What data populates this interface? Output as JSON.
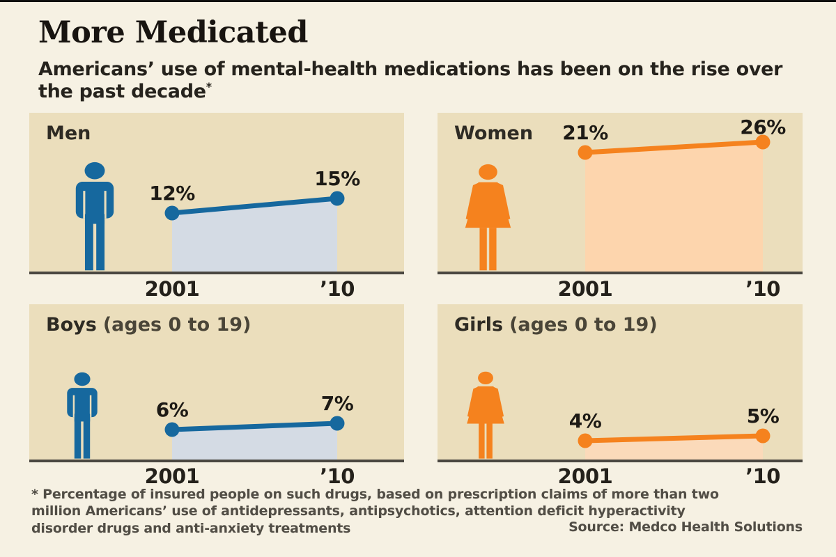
{
  "header": {
    "title": "More Medicated",
    "subtitle": "Americans’ use of mental-health medications has been on the rise over the past decade",
    "footnote_marker": "*"
  },
  "chart_data": [
    {
      "type": "area",
      "title": "Men",
      "title_suffix": "",
      "categories": [
        "2001",
        "’10"
      ],
      "values": [
        12,
        15
      ],
      "value_labels": [
        "12%",
        "15%"
      ],
      "unit": "%",
      "icon": "man",
      "color": "#16689e",
      "area_color": "#d4dbe4"
    },
    {
      "type": "area",
      "title": "Women",
      "title_suffix": "",
      "categories": [
        "2001",
        "’10"
      ],
      "values": [
        21,
        26
      ],
      "value_labels": [
        "21%",
        "26%"
      ],
      "unit": "%",
      "icon": "woman",
      "color": "#f5821e",
      "area_color": "#fdd5ad"
    },
    {
      "type": "area",
      "title": "Boys",
      "title_suffix": "(ages 0 to 19)",
      "categories": [
        "2001",
        "’10"
      ],
      "values": [
        6,
        7
      ],
      "value_labels": [
        "6%",
        "7%"
      ],
      "unit": "%",
      "icon": "boy",
      "color": "#16689e",
      "area_color": "#d4dbe4"
    },
    {
      "type": "area",
      "title": "Girls",
      "title_suffix": "(ages 0 to 19)",
      "categories": [
        "2001",
        "’10"
      ],
      "values": [
        4,
        5
      ],
      "value_labels": [
        "4%",
        "5%"
      ],
      "unit": "%",
      "icon": "girl",
      "color": "#f5821e",
      "area_color": "#fbdaba"
    }
  ],
  "footnote": {
    "text": "* Percentage of insured people on such drugs, based on prescription claims of more than two million Americans’ use of antidepressants, antipsychotics, attention deficit hyperactivity disorder drugs and anti-anxiety treatments",
    "source": "Source: Medco Health Solutions"
  },
  "colors": {
    "blue": "#16689e",
    "orange": "#f5821e",
    "light_blue": "#d4dbe4",
    "light_orange": "#fdd5ad",
    "panel_bg": "#ebdebc",
    "page_bg": "#f6f1e3",
    "baseline": "#4a4741"
  }
}
